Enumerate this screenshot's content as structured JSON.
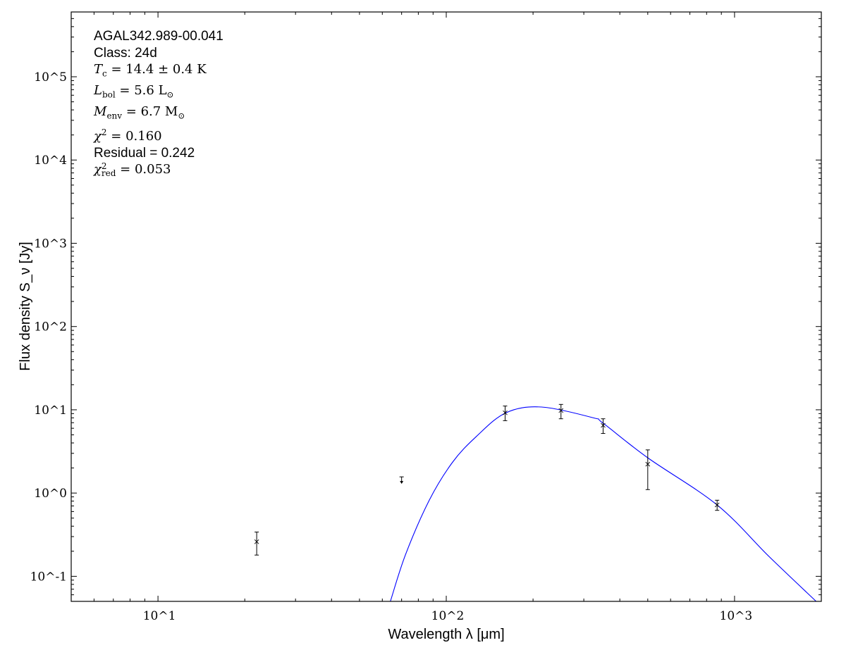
{
  "chart_data": {
    "type": "scatter",
    "xlabel": "Wavelength λ [μm]",
    "ylabel": "Flux density S_ν [Jy]",
    "xscale": "log",
    "yscale": "log",
    "xlim": [
      5,
      2000
    ],
    "ylim": [
      0.05,
      600000
    ],
    "grid": false,
    "x_ticks": [
      {
        "value": 10,
        "label": "10^1"
      },
      {
        "value": 100,
        "label": "10^2"
      },
      {
        "value": 1000,
        "label": "10^3"
      }
    ],
    "y_ticks": [
      {
        "value": 0.1,
        "label": "10^-1"
      },
      {
        "value": 1,
        "label": "10^0"
      },
      {
        "value": 10,
        "label": "10^1"
      },
      {
        "value": 100,
        "label": "10^2"
      },
      {
        "value": 1000,
        "label": "10^3"
      },
      {
        "value": 10000,
        "label": "10^4"
      },
      {
        "value": 100000,
        "label": "10^5"
      }
    ],
    "points": [
      {
        "x": 22,
        "y": 0.26,
        "ylo": 0.18,
        "yhi": 0.34,
        "upper_limit": false
      },
      {
        "x": 70,
        "y": 1.42,
        "upper_limit": true
      },
      {
        "x": 160,
        "y": 9.2,
        "ylo": 7.4,
        "yhi": 11.1,
        "upper_limit": false
      },
      {
        "x": 250,
        "y": 9.8,
        "ylo": 7.8,
        "yhi": 11.6,
        "upper_limit": false
      },
      {
        "x": 350,
        "y": 6.5,
        "ylo": 5.2,
        "yhi": 7.8,
        "upper_limit": false
      },
      {
        "x": 500,
        "y": 2.22,
        "ylo": 1.1,
        "yhi": 3.3,
        "upper_limit": false
      },
      {
        "x": 870,
        "y": 0.72,
        "ylo": 0.62,
        "yhi": 0.82,
        "upper_limit": false
      }
    ],
    "model_curve": {
      "color": "#0000ff",
      "x": [
        64,
        72.3,
        87.3,
        105,
        127,
        161,
        214,
        324,
        350,
        500,
        870,
        1317,
        1919
      ],
      "y": [
        0.05,
        0.184,
        0.82,
        2.33,
        4.76,
        9.2,
        10.8,
        8.0,
        6.9,
        2.65,
        0.72,
        0.173,
        0.05
      ]
    },
    "point_color": "#000000"
  },
  "annotation": {
    "source": "AGAL342.989-00.041",
    "class_label": "Class: 24d",
    "tc": {
      "sym": "T",
      "sub": "c",
      "rest": " = 14.4 ± 0.4 K"
    },
    "lbol": {
      "sym": "L",
      "sub": "bol",
      "rest": " = 5.6 L",
      "unit_sub": "⊙"
    },
    "menv": {
      "sym": "M",
      "sub": "env",
      "rest": " = 6.7 M",
      "unit_sub": "⊙"
    },
    "chi2": {
      "sym": "χ",
      "sup": "2",
      "rest": " = 0.160"
    },
    "residual": "Residual = 0.242",
    "chi2red": {
      "sym": "χ",
      "sup": "2",
      "sub": "red",
      "rest": " = 0.053"
    }
  }
}
